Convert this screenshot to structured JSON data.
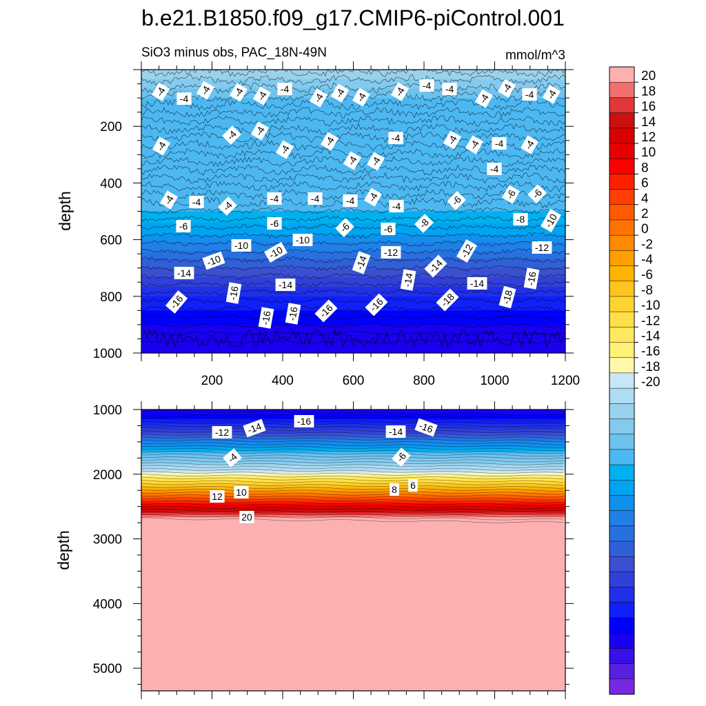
{
  "title": "b.e21.B1850.f09_g17.CMIP6-piControl.001",
  "subtitle_left": "SiO3 minus obs, PAC_18N-49N",
  "subtitle_right": "mmol/m^3",
  "chart_data": [
    {
      "type": "contour",
      "panel": "upper",
      "ylabel": "depth",
      "x_range": [
        0,
        1200
      ],
      "y_range": [
        1000,
        0
      ],
      "x_ticks": [
        "200",
        "400",
        "600",
        "800",
        "1000",
        "1200"
      ],
      "y_ticks": [
        "200",
        "400",
        "600",
        "800",
        "1000"
      ],
      "contour_labels": [
        "-4",
        "-4",
        "-4",
        "-4",
        "-4",
        "-4",
        "-4",
        "-4",
        "-4",
        "-4",
        "-4",
        "-4",
        "-4",
        "-4",
        "-4",
        "-4",
        "-4",
        "-4",
        "-4",
        "-4",
        "-4",
        "-4",
        "-4",
        "-4",
        "-4",
        "-4",
        "-4",
        "-4",
        "-4",
        "-4",
        "-4",
        "-4",
        "-4",
        "-4",
        "-4",
        "-4",
        "-4",
        "-6",
        "-6",
        "-6",
        "-6",
        "-6",
        "-6",
        "-6",
        "-8",
        "-8",
        "-10",
        "-10",
        "-10",
        "-10",
        "-10",
        "-12",
        "-12",
        "-12",
        "-14",
        "-14",
        "-14",
        "-14",
        "-14",
        "-14",
        "-16",
        "-16",
        "-16",
        "-16",
        "-16",
        "-16",
        "-16",
        "-18",
        "-18"
      ],
      "depth_profile": [
        {
          "depth": 0,
          "value": -1
        },
        {
          "depth": 100,
          "value": -4
        },
        {
          "depth": 500,
          "value": -5
        },
        {
          "depth": 580,
          "value": -7
        },
        {
          "depth": 700,
          "value": -11
        },
        {
          "depth": 800,
          "value": -14
        },
        {
          "depth": 900,
          "value": -16
        },
        {
          "depth": 1000,
          "value": -17
        }
      ]
    },
    {
      "type": "contour",
      "panel": "lower",
      "ylabel": "depth",
      "x_range": [
        0,
        1200
      ],
      "y_range": [
        5350,
        1000
      ],
      "y_ticks": [
        "1000",
        "2000",
        "3000",
        "4000",
        "5000"
      ],
      "contour_labels": [
        "-12",
        "-14",
        "-16",
        "-14",
        "-16",
        "-4",
        "-6",
        "12",
        "10",
        "8",
        "6",
        "20"
      ],
      "depth_profile": [
        {
          "depth": 1000,
          "value": -17
        },
        {
          "depth": 1300,
          "value": -13
        },
        {
          "depth": 1700,
          "value": -4
        },
        {
          "depth": 1950,
          "value": 0
        },
        {
          "depth": 2300,
          "value": 10
        },
        {
          "depth": 2650,
          "value": 20
        },
        {
          "depth": 5350,
          "value": 21
        }
      ]
    }
  ],
  "colorbar": {
    "ticks": [
      "20",
      "18",
      "16",
      "14",
      "12",
      "10",
      "8",
      "6",
      "4",
      "2",
      "0",
      "-2",
      "-4",
      "-6",
      "-8",
      "-10",
      "-12",
      "-14",
      "-16",
      "-18",
      "-20"
    ],
    "colors": [
      "#fdb0b0",
      "#f07070",
      "#e03838",
      "#cc1010",
      "#d80000",
      "#e80000",
      "#ff0000",
      "#ff2000",
      "#ff4000",
      "#ff5a00",
      "#ff7400",
      "#ff8a00",
      "#ffa000",
      "#ffb400",
      "#ffc420",
      "#ffd430",
      "#ffe048",
      "#ffe860",
      "#fff078",
      "#fff8a8",
      "#c8e6f8",
      "#aedcf2",
      "#9ad2ee",
      "#84caee",
      "#6ec2ee",
      "#4cb8f2",
      "#00b0f0",
      "#00a4f0",
      "#1090ec",
      "#2080e8",
      "#2870e0",
      "#3060d8",
      "#3a50d0",
      "#3040d8",
      "#2030e8",
      "#1020f8",
      "#0000ff",
      "#1800f0",
      "#3810e8",
      "#5820e0",
      "#7828e0"
    ]
  }
}
